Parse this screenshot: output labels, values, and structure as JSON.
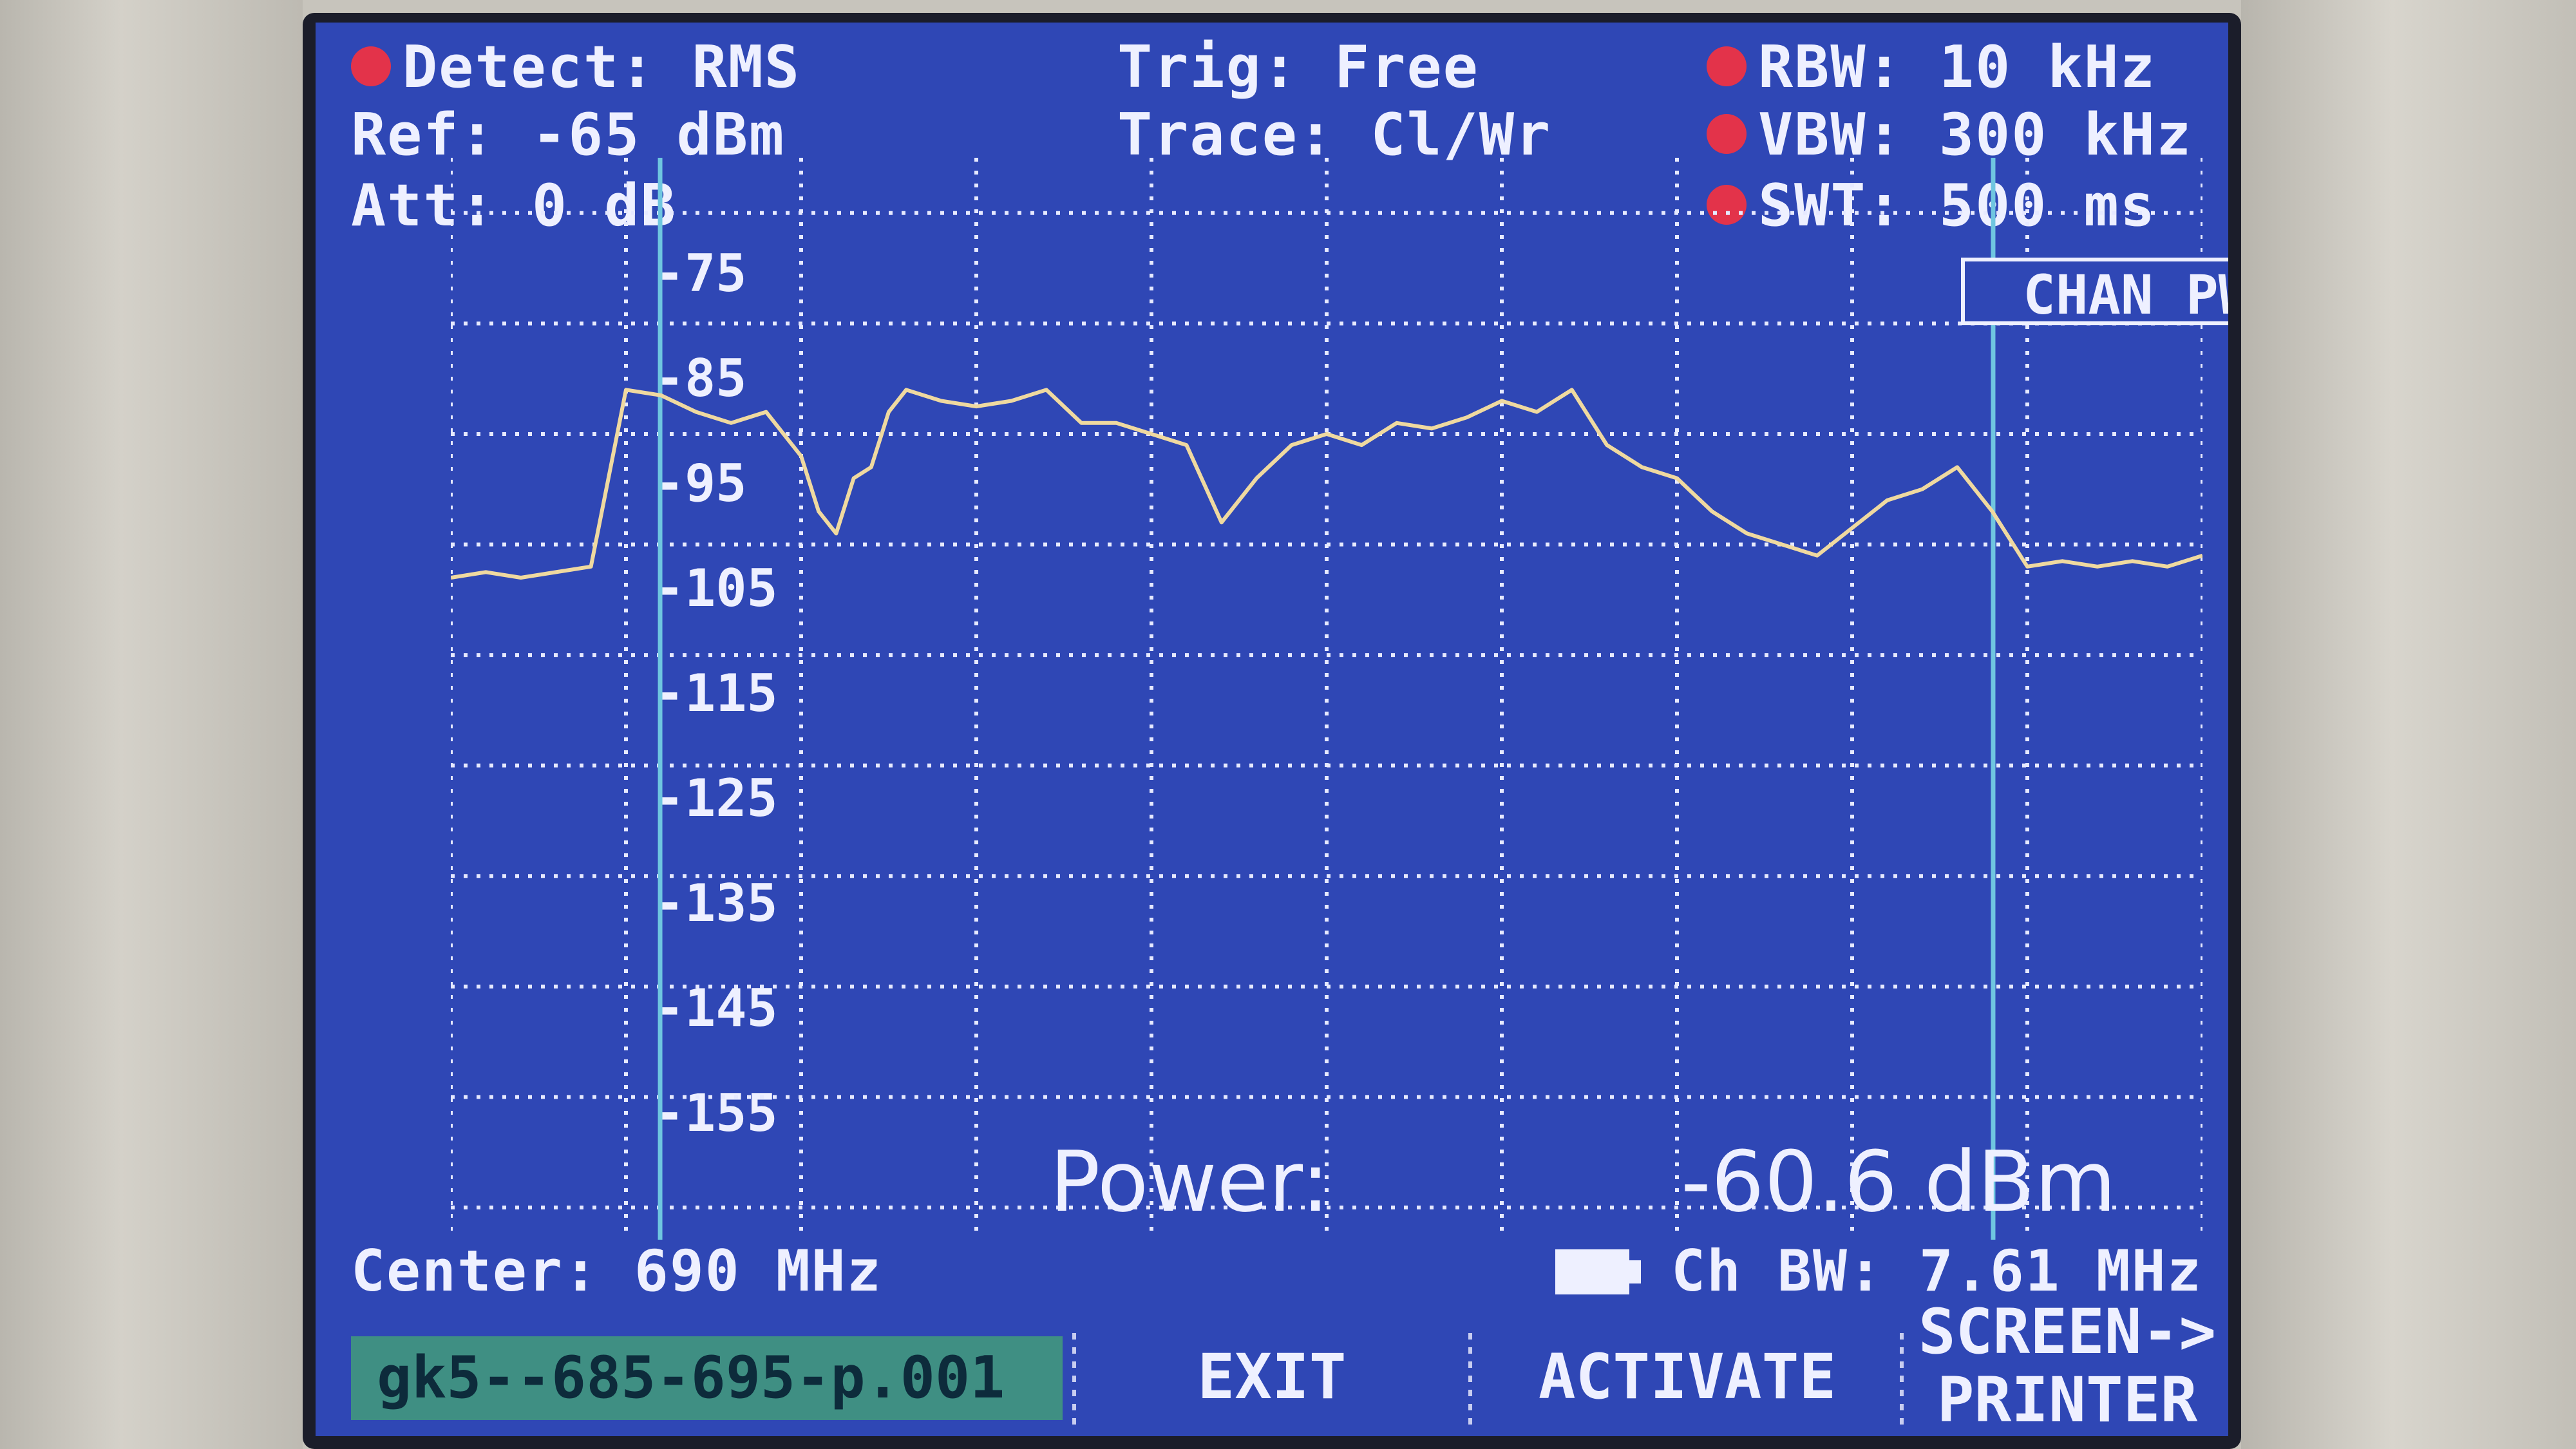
{
  "header": {
    "detect": "Detect: RMS",
    "ref": "Ref: -65 dBm",
    "att": "Att: 0 dB",
    "trig": "Trig: Free",
    "trace": "Trace: Cl/Wr",
    "rbw": "RBW: 10 kHz",
    "vbw": "VBW: 300 kHz",
    "swt": "SWT: 500 ms",
    "mode": "CHAN PWR USER",
    "indicator_color": "#e3334a"
  },
  "y_axis": {
    "labels": [
      "-75",
      "-85",
      "-95",
      "-105",
      "-115",
      "-125",
      "-135",
      "-145",
      "-155"
    ]
  },
  "chart_data": {
    "type": "line",
    "title": "",
    "xlabel": "",
    "ylabel": "",
    "ylim": [
      -160,
      -65
    ],
    "xlim": [
      685.0,
      695.0
    ],
    "grid": true,
    "x_unit": "MHz",
    "y_unit": "dBm",
    "channel_markers_mhz": [
      686.195,
      693.805
    ],
    "trace_color": "#efd9a0",
    "series": [
      {
        "x": [
          685.0,
          685.2,
          685.4,
          685.6,
          685.8,
          686.0,
          686.2,
          686.4,
          686.6,
          686.8,
          687.0,
          687.1,
          687.2,
          687.3,
          687.4,
          687.5,
          687.6,
          687.8,
          688.0,
          688.2,
          688.4,
          688.6,
          688.8,
          689.0,
          689.2,
          689.4,
          689.6,
          689.8,
          690.0,
          690.2,
          690.4,
          690.6,
          690.8,
          691.0,
          691.2,
          691.4,
          691.6,
          691.8,
          692.0,
          692.2,
          692.4,
          692.6,
          692.8,
          693.0,
          693.2,
          693.4,
          693.6,
          693.8,
          694.0,
          694.2,
          694.4,
          694.6,
          694.8,
          695.0
        ],
        "y": [
          -103,
          -102.5,
          -103,
          -102.5,
          -102,
          -86,
          -86.5,
          -88,
          -89,
          -88,
          -92,
          -97,
          -99,
          -94,
          -93,
          -88,
          -86,
          -87,
          -87.5,
          -87,
          -86,
          -89,
          -89,
          -90,
          -91,
          -98,
          -94,
          -91,
          -90,
          -91,
          -89,
          -89.5,
          -88.5,
          -87,
          -88,
          -86,
          -91,
          -93,
          -94,
          -97,
          -99,
          -100,
          -101,
          -98.5,
          -96,
          -95,
          -93,
          -97,
          -102,
          -101.5,
          -102,
          -101.5,
          -102,
          -101
        ]
      }
    ]
  },
  "footer": {
    "center": "Center: 690 MHz",
    "ch_bw": "Ch BW: 7.61 MHz",
    "power_label": "Power:",
    "power_value": "-60.6 dBm"
  },
  "softkeys": {
    "file": "gk5--685-695-p.001",
    "exit": "EXIT",
    "activate": "ACTIVATE",
    "screen_line1": "SCREEN->",
    "screen_line2": "PRINTER"
  }
}
